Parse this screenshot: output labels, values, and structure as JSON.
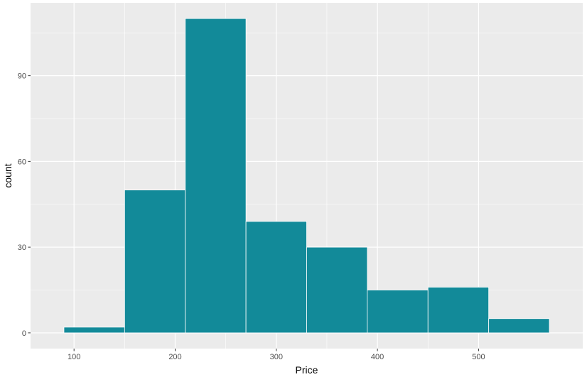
{
  "chart_data": {
    "type": "histogram",
    "xlabel": "Price",
    "ylabel": "count",
    "bin_edges": [
      90,
      150,
      210,
      270,
      330,
      390,
      450,
      510,
      570
    ],
    "counts": [
      2,
      50,
      110,
      39,
      30,
      15,
      16,
      5
    ],
    "xlim": [
      57,
      603
    ],
    "ylim": [
      -5.5,
      115.5
    ],
    "x_ticks": [
      100,
      200,
      300,
      400,
      500
    ],
    "y_ticks": [
      0,
      30,
      60,
      90
    ],
    "grid": true,
    "colors": {
      "bar_fill": "#128a99",
      "bar_outline": "#ffffff",
      "panel_background": "#ebebeb",
      "grid": "#ffffff"
    }
  }
}
